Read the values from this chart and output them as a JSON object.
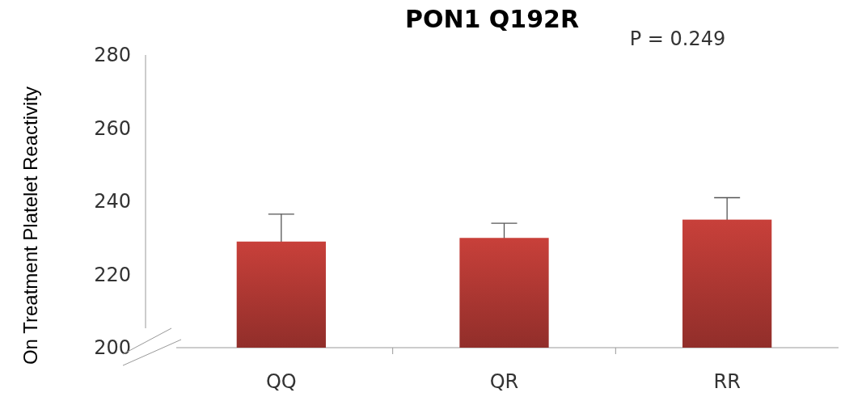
{
  "chart_data": {
    "type": "bar",
    "title": "PON1 Q192R",
    "ylabel": "On Treatment Platelet Reactivity",
    "annotations": [
      "P = 0.249"
    ],
    "categories": [
      "QQ",
      "QR",
      "RR"
    ],
    "values": [
      229,
      230,
      235
    ],
    "errors": [
      7.5,
      4,
      6
    ],
    "color": "#c8403a",
    "ylim": [
      200,
      280
    ],
    "yticks": [
      200,
      220,
      240,
      260,
      280
    ],
    "grid": false
  }
}
